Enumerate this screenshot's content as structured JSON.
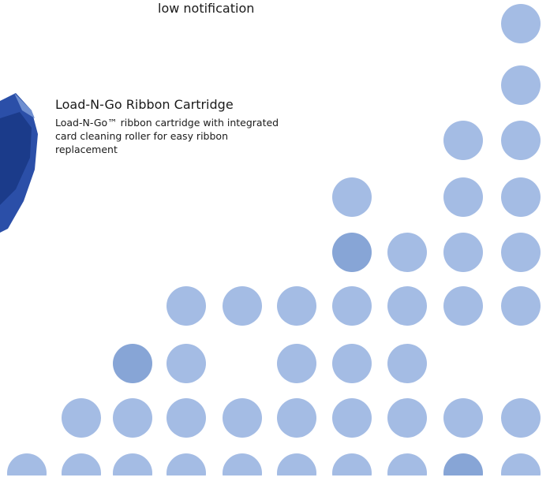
{
  "caption": {
    "text": "low notification"
  },
  "feature": {
    "title": "Load-N-Go Ribbon Cartridge",
    "description": "Load-N-Go™ ribbon cartridge with integrated card cleaning roller for easy ribbon replacement"
  }
}
